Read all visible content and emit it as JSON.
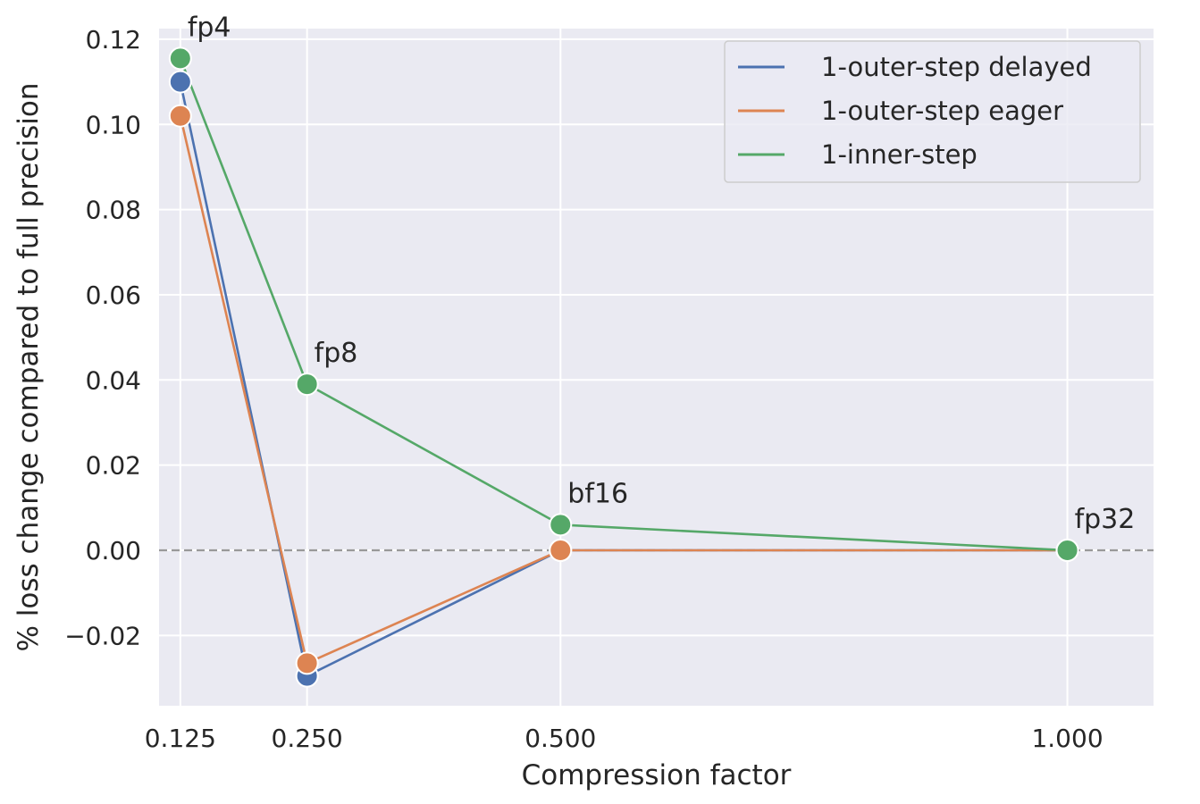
{
  "chart_data": {
    "type": "line",
    "xlabel": "Compression factor",
    "ylabel": "% loss change compared to full precision",
    "x": [
      0.125,
      0.25,
      0.5,
      1.0
    ],
    "x_tick_labels": [
      "0.125",
      "0.250",
      "0.500",
      "1.000"
    ],
    "y_ticks": [
      -0.02,
      0.0,
      0.02,
      0.04,
      0.06,
      0.08,
      0.1,
      0.12
    ],
    "y_tick_labels": [
      "−0.02",
      "0.00",
      "0.02",
      "0.04",
      "0.06",
      "0.08",
      "0.10",
      "0.12"
    ],
    "xlim": [
      0.104,
      1.085
    ],
    "ylim": [
      -0.0365,
      0.1225
    ],
    "grid": true,
    "legend_position": "top-right",
    "reference_line": {
      "y": 0.0,
      "style": "dashed",
      "color": "#999999"
    },
    "series": [
      {
        "name": "1-outer-step delayed",
        "color": "#4c72b0",
        "values": [
          0.11,
          -0.0295,
          0.0,
          0.0
        ]
      },
      {
        "name": "1-outer-step eager",
        "color": "#dd8452",
        "values": [
          0.102,
          -0.0265,
          0.0,
          0.0
        ]
      },
      {
        "name": "1-inner-step",
        "color": "#55a868",
        "values": [
          0.1155,
          0.039,
          0.006,
          0.0
        ]
      }
    ],
    "annotations": [
      {
        "text": "fp4",
        "x": 0.125,
        "y": 0.1155
      },
      {
        "text": "fp8",
        "x": 0.25,
        "y": 0.039
      },
      {
        "text": "bf16",
        "x": 0.5,
        "y": 0.006
      },
      {
        "text": "fp32",
        "x": 1.0,
        "y": 0.0
      }
    ],
    "colors": {
      "plot_background": "#eaeaf2",
      "grid": "#ffffff",
      "text": "#262626"
    }
  }
}
